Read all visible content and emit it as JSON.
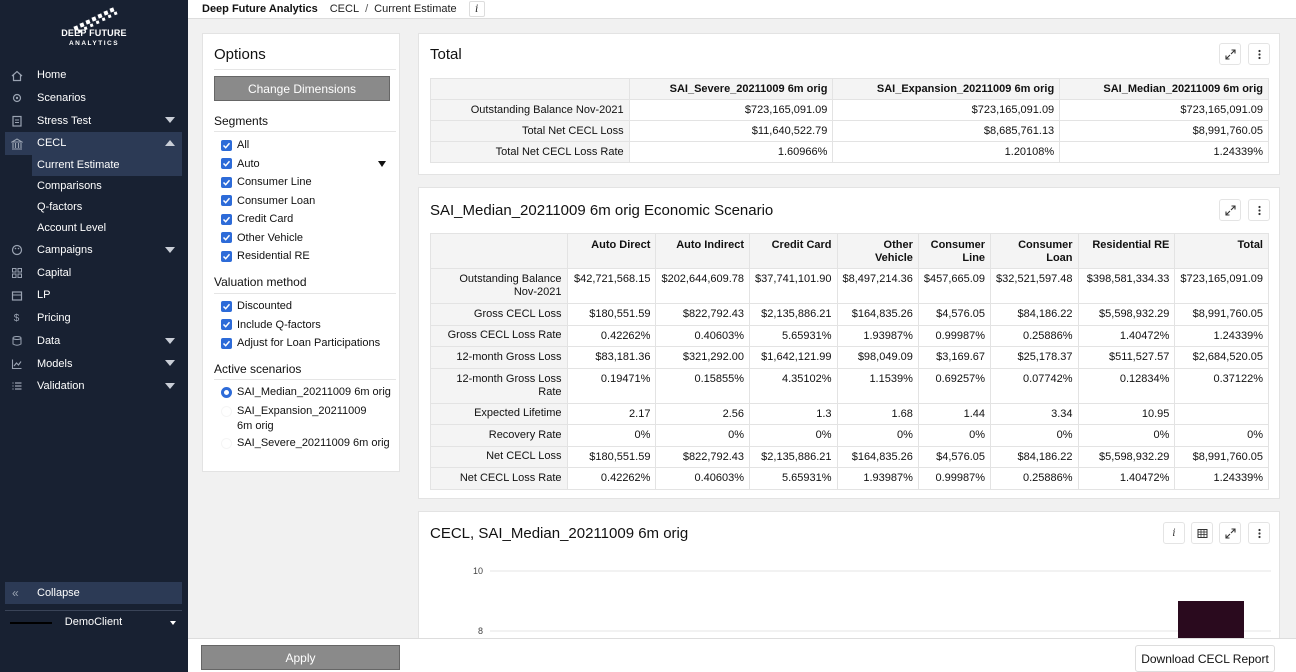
{
  "brand": {
    "line1": "DEEP FUTURE",
    "line2": "ANALYTICS"
  },
  "topbar": {
    "app_name": "Deep Future Analytics",
    "breadcrumb": [
      "CECL",
      "Current Estimate"
    ],
    "separator": "/",
    "info": "i"
  },
  "sidebar": {
    "items": [
      {
        "label": "Home",
        "icon": "home-icon"
      },
      {
        "label": "Scenarios",
        "icon": "gear-icon"
      },
      {
        "label": "Stress Test",
        "icon": "clipboard-icon"
      },
      {
        "label": "CECL",
        "icon": "bank-icon"
      },
      {
        "label": "Campaigns",
        "icon": "palette-icon"
      },
      {
        "label": "Capital",
        "icon": "grid-icon"
      },
      {
        "label": "LP",
        "icon": "image-icon"
      },
      {
        "label": "Pricing",
        "icon": "dollar-icon"
      },
      {
        "label": "Data",
        "icon": "database-icon"
      },
      {
        "label": "Models",
        "icon": "chart-line-icon"
      },
      {
        "label": "Validation",
        "icon": "list-icon"
      }
    ],
    "cecl_sub": [
      "Current Estimate",
      "Comparisons",
      "Q-factors",
      "Account Level"
    ],
    "collapse_label": "Collapse",
    "client": "DemoClient"
  },
  "options": {
    "title": "Options",
    "change_dimensions": "Change Dimensions",
    "segments_title": "Segments",
    "segments": [
      "All",
      "Auto",
      "Consumer Line",
      "Consumer Loan",
      "Credit Card",
      "Other Vehicle",
      "Residential RE"
    ],
    "valuation_title": "Valuation method",
    "valuation": [
      "Discounted",
      "Include Q-factors",
      "Adjust for Loan Participations"
    ],
    "scenarios_title": "Active scenarios",
    "scenarios": [
      "SAI_Median_20211009 6m orig",
      "SAI_Expansion_20211009 6m orig",
      "SAI_Severe_20211009 6m orig"
    ]
  },
  "total": {
    "title": "Total",
    "headers": [
      "SAI_Severe_20211009 6m orig",
      "SAI_Expansion_20211009 6m orig",
      "SAI_Median_20211009 6m orig"
    ],
    "rows": [
      {
        "label": "Outstanding Balance Nov-2021",
        "values": [
          "$723,165,091.09",
          "$723,165,091.09",
          "$723,165,091.09"
        ]
      },
      {
        "label": "Total Net CECL Loss",
        "values": [
          "$11,640,522.79",
          "$8,685,761.13",
          "$8,991,760.05"
        ]
      },
      {
        "label": "Total Net CECL Loss Rate",
        "values": [
          "1.60966%",
          "1.20108%",
          "1.24339%"
        ]
      }
    ]
  },
  "scenario": {
    "title": "SAI_Median_20211009 6m orig Economic Scenario",
    "headers": [
      [
        "Auto Direct"
      ],
      [
        "Auto Indirect"
      ],
      [
        "Credit Card"
      ],
      [
        "Other",
        "Vehicle"
      ],
      [
        "Consumer",
        "Line"
      ],
      [
        "Consumer",
        "Loan"
      ],
      [
        "Residential RE"
      ],
      [
        "Total"
      ]
    ],
    "rows": [
      {
        "label": [
          "Outstanding Balance",
          "Nov-2021"
        ],
        "values": [
          "$42,721,568.15",
          "$202,644,609.78",
          "$37,741,101.90",
          "$8,497,214.36",
          "$457,665.09",
          "$32,521,597.48",
          "$398,581,334.33",
          "$723,165,091.09"
        ]
      },
      {
        "label": [
          "Gross CECL Loss"
        ],
        "values": [
          "$180,551.59",
          "$822,792.43",
          "$2,135,886.21",
          "$164,835.26",
          "$4,576.05",
          "$84,186.22",
          "$5,598,932.29",
          "$8,991,760.05"
        ]
      },
      {
        "label": [
          "Gross CECL Loss Rate"
        ],
        "values": [
          "0.42262%",
          "0.40603%",
          "5.65931%",
          "1.93987%",
          "0.99987%",
          "0.25886%",
          "1.40472%",
          "1.24339%"
        ]
      },
      {
        "label": [
          "12-month Gross Loss"
        ],
        "values": [
          "$83,181.36",
          "$321,292.00",
          "$1,642,121.99",
          "$98,049.09",
          "$3,169.67",
          "$25,178.37",
          "$511,527.57",
          "$2,684,520.05"
        ]
      },
      {
        "label": [
          "12-month Gross Loss",
          "Rate"
        ],
        "values": [
          "0.19471%",
          "0.15855%",
          "4.35102%",
          "1.1539%",
          "0.69257%",
          "0.07742%",
          "0.12834%",
          "0.37122%"
        ]
      },
      {
        "label": [
          "Expected Lifetime"
        ],
        "values": [
          "2.17",
          "2.56",
          "1.3",
          "1.68",
          "1.44",
          "3.34",
          "10.95",
          ""
        ]
      },
      {
        "label": [
          "Recovery Rate"
        ],
        "values": [
          "0%",
          "0%",
          "0%",
          "0%",
          "0%",
          "0%",
          "0%",
          "0%"
        ]
      },
      {
        "label": [
          "Net CECL Loss"
        ],
        "values": [
          "$180,551.59",
          "$822,792.43",
          "$2,135,886.21",
          "$164,835.26",
          "$4,576.05",
          "$84,186.22",
          "$5,598,932.29",
          "$8,991,760.05"
        ]
      },
      {
        "label": [
          "Net CECL Loss Rate"
        ],
        "values": [
          "0.42262%",
          "0.40603%",
          "5.65931%",
          "1.93987%",
          "0.99987%",
          "0.25886%",
          "1.40472%",
          "1.24339%"
        ]
      }
    ]
  },
  "chart_card": {
    "title": "CECL, SAI_Median_20211009 6m orig",
    "info": "i"
  },
  "chart_data": {
    "type": "bar",
    "yticks": [
      10,
      8
    ],
    "visible_ylim": [
      8,
      10
    ],
    "bars": [
      {
        "value": 9.0,
        "color": "#2a0a1e"
      }
    ],
    "grid": true
  },
  "bottombar": {
    "apply": "Apply",
    "download": "Download CECL Report"
  },
  "colors": {
    "sidebar": "#182132",
    "sidebar_active": "#2c3a55",
    "accent": "#2d6bd8",
    "button_gray": "#8a8a8a"
  }
}
